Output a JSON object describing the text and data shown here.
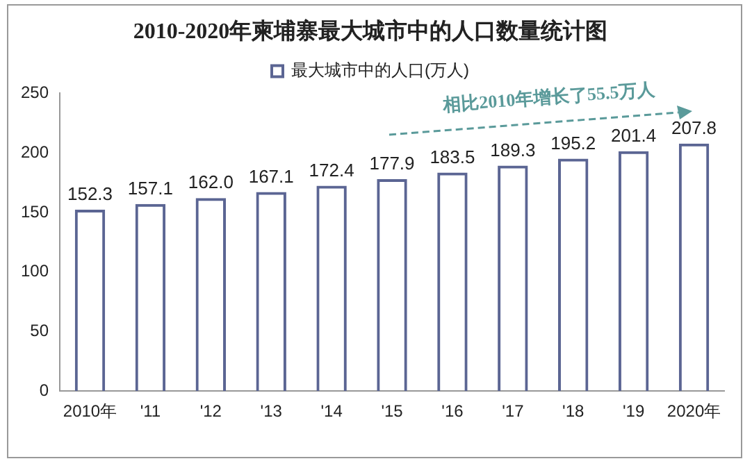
{
  "chart_data": {
    "type": "bar",
    "title": "2010-2020年柬埔寨最大城市中的人口数量统计图",
    "categories": [
      "2010年",
      "'11",
      "'12",
      "'13",
      "'14",
      "'15",
      "'16",
      "'17",
      "'18",
      "'19",
      "2020年"
    ],
    "series": [
      {
        "name": "最大城市中的人口(万人)",
        "color": "#5b6593",
        "values": [
          152.3,
          157.1,
          162.0,
          167.1,
          172.4,
          177.9,
          183.5,
          189.3,
          195.2,
          201.4,
          207.8
        ]
      }
    ],
    "value_labels": [
      "152.3",
      "157.1",
      "162.0",
      "167.1",
      "172.4",
      "177.9",
      "183.5",
      "189.3",
      "195.2",
      "201.4",
      "207.8"
    ],
    "ylim": [
      0,
      250
    ],
    "yticks": [
      0,
      50,
      100,
      150,
      200,
      250
    ],
    "grid": false,
    "legend": "top",
    "annotations": [
      "相比2010年增长了55.5万人"
    ]
  }
}
